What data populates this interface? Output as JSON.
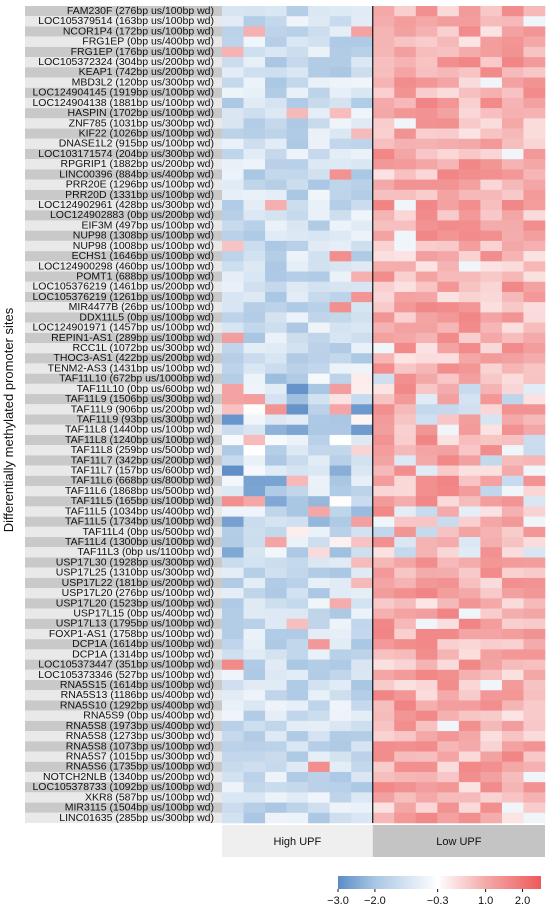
{
  "chart_data": {
    "type": "heatmap",
    "ylabel": "Differentially methylated promoter sites",
    "groups": [
      {
        "name": "High UPF",
        "columns": 7,
        "band_color": "#efefef"
      },
      {
        "name": "Low UPF",
        "columns": 8,
        "band_color": "#c4c4c4"
      }
    ],
    "rows": [
      "FAM230F (276bp us/100bp wd)",
      "LOC105379514 (163bp us/100bp wd)",
      "NCOR1P4 (172bp us/100bp wd)",
      "FRG1EP (0bp us/400bp wd)",
      "FRG1EP (176bp us/100bp wd)",
      "LOC105372324 (304bp us/200bp wd)",
      "KEAP1 (742bp us/200bp wd)",
      "MBD3L2 (120bp us/300bp wd)",
      "LOC124904145 (1919bp us/100bp wd)",
      "LOC124904138 (1881bp us/100bp wd)",
      "HASPIN (1702bp us/100bp wd)",
      "ZNF785 (1031bp us/300bp wd)",
      "KIF22 (1026bp us/100bp wd)",
      "DNASE1L2 (915bp us/100bp wd)",
      "LOC103171574 (204bp us/300bp wd)",
      "RPGRIP1 (1882bp us/200bp wd)",
      "LINC00396 (884bp us/400bp wd)",
      "PRR20E (1296bp us/100bp wd)",
      "PRR20D (1331bp us/100bp wd)",
      "LOC124902961 (428bp us/300bp wd)",
      "LOC124902883 (0bp us/200bp wd)",
      "EIF3M (497bp us/100bp wd)",
      "NUP98 (1308bp us/100bp wd)",
      "NUP98 (1008bp us/100bp wd)",
      "ECHS1 (1646bp us/100bp wd)",
      "LOC124900298 (460bp us/100bp wd)",
      "POMT1 (688bp us/100bp wd)",
      "LOC105376219 (1461bp us/200bp wd)",
      "LOC105376219 (1261bp us/100bp wd)",
      "MIR4477B (26bp us/100bp wd)",
      "DDX11L5 (0bp us/100bp wd)",
      "LOC124901971 (1457bp us/100bp wd)",
      "REPIN1-AS1 (289bp us/100bp wd)",
      "RCC1L (1072bp us/300bp wd)",
      "THOC3-AS1 (422bp us/200bp wd)",
      "TENM2-AS3 (1431bp us/100bp wd)",
      "TAF11L10 (672bp us/1000bp wd)",
      "TAF11L10 (0bp us/600bp wd)",
      "TAF11L9 (1506bp us/300bp wd)",
      "TAF11L9 (906bp us/200bp wd)",
      "TAF11L9 (93bp us/300bp wd)",
      "TAF11L8 (1440bp us/100bp wd)",
      "TAF11L8 (1240bp us/100bp wd)",
      "TAF11L8 (259bp us/500bp wd)",
      "TAF11L7 (342bp us/200bp wd)",
      "TAF11L7 (157bp us/600bp wd)",
      "TAF11L6 (668bp us/800bp wd)",
      "TAF11L6 (1868bp us/500bp wd)",
      "TAF11L5 (165bp us/100bp wd)",
      "TAF11L5 (1034bp us/400bp wd)",
      "TAF11L5 (1734bp us/100bp wd)",
      "TAF11L4 (0bp us/500bp wd)",
      "TAF11L4 (1300bp us/100bp wd)",
      "TAF11L3 (0bp us/1100bp wd)",
      "USP17L30 (1928bp us/300bp wd)",
      "USP17L25 (1310bp us/300bp wd)",
      "USP17L22 (181bp us/200bp wd)",
      "USP17L20 (276bp us/100bp wd)",
      "USP17L20 (1523bp us/100bp wd)",
      "USP17L15 (0bp us/400bp wd)",
      "USP17L13 (1795bp us/100bp wd)",
      "FOXP1-AS1 (1758bp us/100bp wd)",
      "DCP1A (1614bp us/100bp wd)",
      "DCP1A (1314bp us/100bp wd)",
      "LOC105373447 (351bp us/100bp wd)",
      "LOC105373346 (527bp us/100bp wd)",
      "RNA5S15 (1614bp us/100bp wd)",
      "RNA5S13 (1186bp us/400bp wd)",
      "RNA5S10 (1292bp us/400bp wd)",
      "RNA5S9 (0bp us/400bp wd)",
      "RNA5S8 (1973bp us/400bp wd)",
      "RNA5S8 (1273bp us/300bp wd)",
      "RNA5S8 (1073bp us/100bp wd)",
      "RNA5S7 (1015bp us/300bp wd)",
      "RNA5S6 (1735bp us/100bp wd)",
      "NOTCH2NLB (1340bp us/200bp wd)",
      "LOC105378733 (1092bp us/100bp wd)",
      "XKR8 (587bp us/100bp wd)",
      "MIR3115 (1504bp us/100bp wd)",
      "LINC01635 (285bp us/300bp wd)"
    ],
    "colorbar": {
      "min": -3.0,
      "max": 2.5,
      "ticks": [
        -3.0,
        -2.0,
        -0.3,
        1.0,
        2.0
      ],
      "tick_labels": [
        "−3.0",
        "−2.0",
        "−0.3",
        "1.0",
        "2.0"
      ],
      "colors": [
        "#5b8cc6",
        "#a9c6e3",
        "#ffffff",
        "#f4a9a9",
        "#ee5a5a"
      ]
    },
    "values_note": null
  }
}
